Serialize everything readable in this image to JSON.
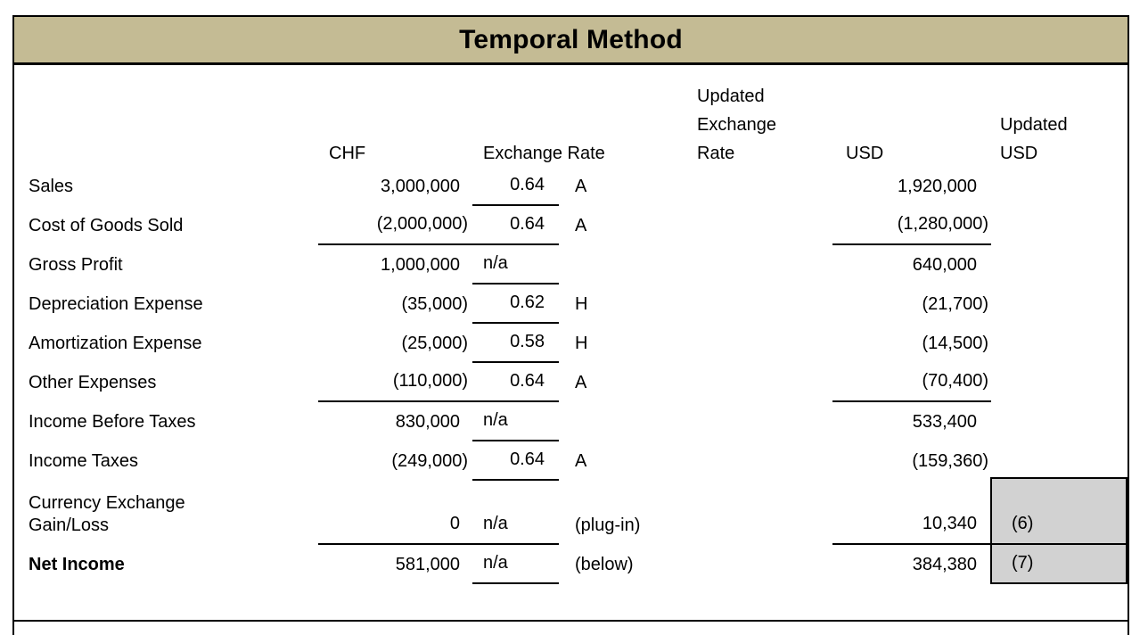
{
  "title": "Temporal Method",
  "columns": {
    "chf": "CHF",
    "exchange_rate": "Exchange Rate",
    "updated_exchange_rate": "Updated\nExchange\nRate",
    "usd": "USD",
    "updated_usd": "Updated\nUSD"
  },
  "rows": [
    {
      "label": "Sales",
      "chf": "3,000,000",
      "rate": "0.64",
      "note": "A",
      "usd": "1,920,000"
    },
    {
      "label": "Cost of Goods Sold",
      "chf": "(2,000,000)",
      "rate": "0.64",
      "note": "A",
      "usd": "(1,280,000)",
      "chf_underline": true,
      "usd_underline": true
    },
    {
      "label": "Gross Profit",
      "chf": "1,000,000",
      "rate": "n/a",
      "note": "",
      "usd": "640,000"
    },
    {
      "label": "Depreciation Expense",
      "chf": "(35,000)",
      "rate": "0.62",
      "note": "H",
      "usd": "(21,700)"
    },
    {
      "label": "Amortization Expense",
      "chf": "(25,000)",
      "rate": "0.58",
      "note": "H",
      "usd": "(14,500)"
    },
    {
      "label": "Other Expenses",
      "chf": "(110,000)",
      "rate": "0.64",
      "note": "A",
      "usd": "(70,400)",
      "chf_underline": true,
      "usd_underline": true
    },
    {
      "label": "Income Before Taxes",
      "chf": "830,000",
      "rate": "n/a",
      "note": "",
      "usd": "533,400"
    },
    {
      "label": "Income Taxes",
      "chf": "(249,000)",
      "rate": "0.64",
      "note": "A",
      "usd": "(159,360)"
    },
    {
      "label": "Currency Exchange\nGain/Loss",
      "chf": "0",
      "rate": "n/a",
      "note": "(plug-in)",
      "usd": "10,340",
      "chf_underline": true,
      "usd_underline": true,
      "annotation": "(6)",
      "tall": true
    },
    {
      "label": "Net Income",
      "bold": true,
      "chf": "581,000",
      "rate": "n/a",
      "note": "(below)",
      "usd": "384,380",
      "annotation": "(7)"
    }
  ],
  "annotations": {
    "gain_loss_ref": "(6)",
    "net_income_ref": "(7)"
  },
  "colors": {
    "title_bg": "#c4bb94",
    "shaded_cell_bg": "#d2d2d2",
    "border": "#000000"
  }
}
